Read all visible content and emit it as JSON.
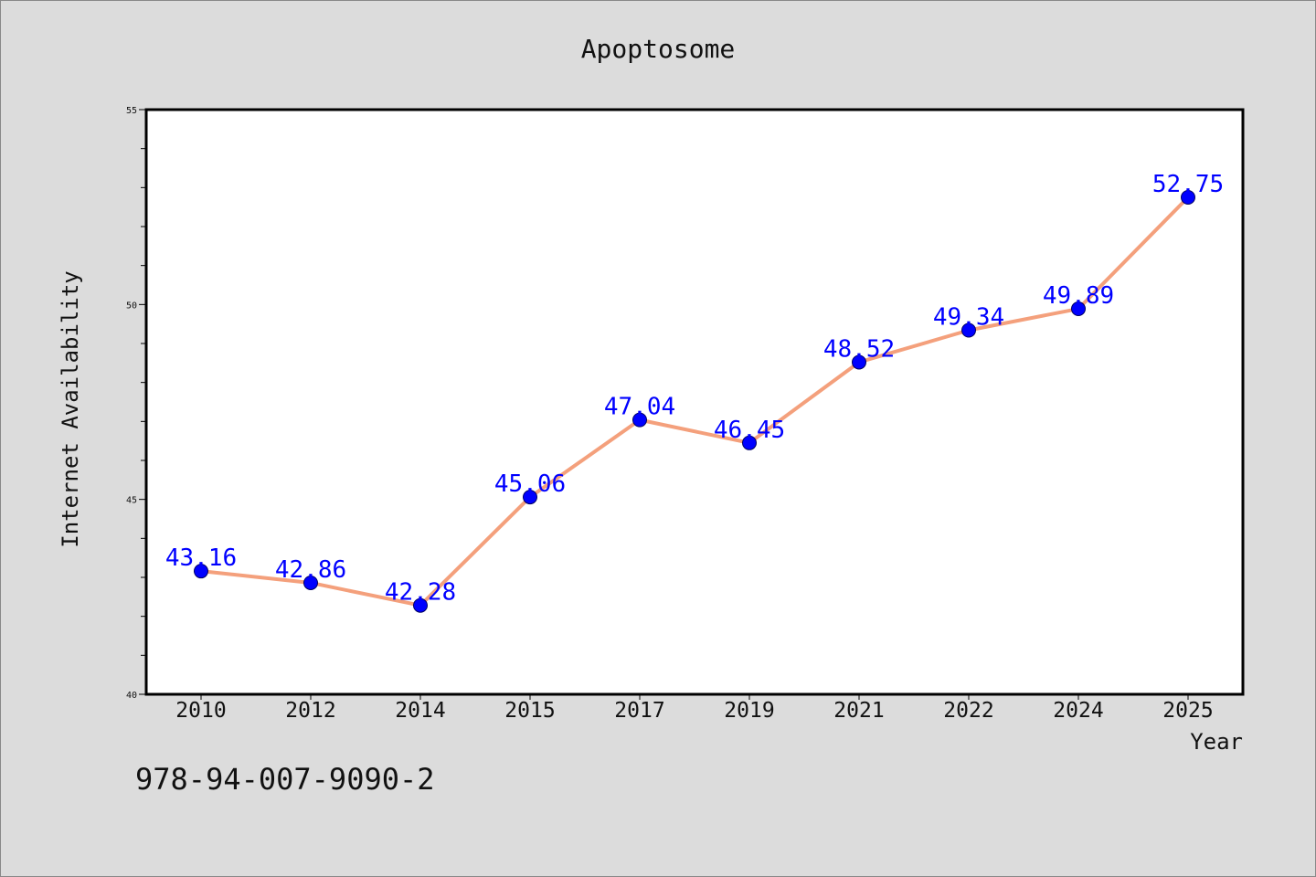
{
  "chart_data": {
    "type": "line",
    "title": "Apoptosome",
    "xlabel": "Year",
    "ylabel": "Internet Availability",
    "categories": [
      "2010",
      "2012",
      "2014",
      "2015",
      "2017",
      "2019",
      "2021",
      "2022",
      "2024",
      "2025"
    ],
    "series": [
      {
        "values": [
          43.16,
          42.86,
          42.28,
          45.06,
          47.04,
          46.45,
          48.52,
          49.34,
          49.89,
          52.75
        ],
        "labels": [
          "43.16",
          "42.86",
          "42.28",
          "45.06",
          "47.04",
          "46.45",
          "48.52",
          "49.34",
          "49.89",
          "52.75"
        ],
        "line_color": "#f4a07c",
        "marker_color": "#0000ff"
      }
    ],
    "ylim": [
      40,
      55
    ],
    "yticks": [
      "40",
      "45",
      "50",
      "55"
    ],
    "grid": false,
    "legend": "none"
  },
  "footnote": "978-94-007-9090-2",
  "colors": {
    "background": "#dcdcdc",
    "plot_background": "#ffffff",
    "label_color": "#0000ff"
  }
}
